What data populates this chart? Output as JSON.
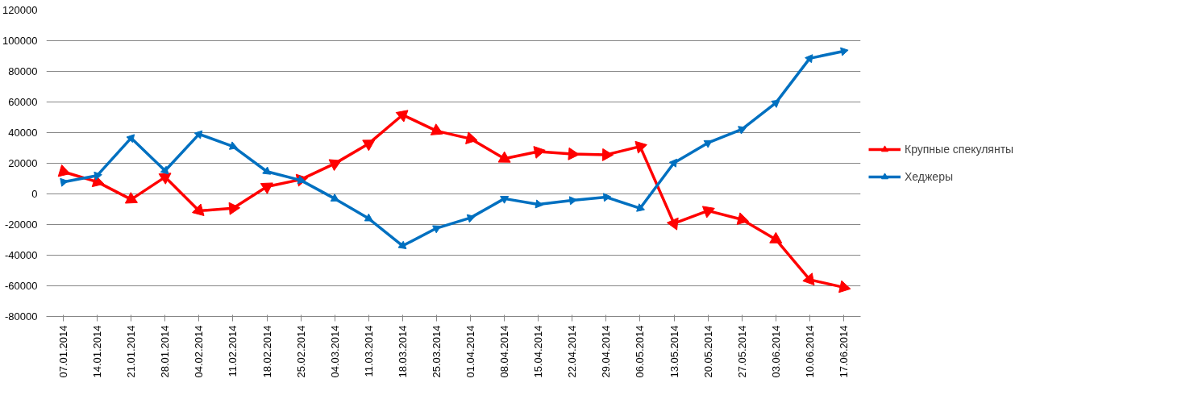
{
  "chart_data": {
    "type": "line",
    "categories": [
      "07.01.2014",
      "14.01.2014",
      "21.01.2014",
      "28.01.2014",
      "04.02.2014",
      "11.02.2014",
      "18.02.2014",
      "25.02.2014",
      "04.03.2014",
      "11.03.2014",
      "18.03.2014",
      "25.03.2014",
      "01.04.2014",
      "08.04.2014",
      "15.04.2014",
      "22.04.2014",
      "29.04.2014",
      "06.05.2014",
      "13.05.2014",
      "20.05.2014",
      "27.05.2014",
      "03.06.2014",
      "10.06.2014",
      "17.06.2014"
    ],
    "series": [
      {
        "name": "Крупные спекулянты",
        "color": "#ff0000",
        "values": [
          14500,
          7800,
          -3600,
          11000,
          -11000,
          -9400,
          4700,
          9400,
          19800,
          32800,
          51600,
          41100,
          36000,
          23000,
          27600,
          26000,
          25500,
          31000,
          -19300,
          -11000,
          -16700,
          -29700,
          -56000,
          -61000
        ]
      },
      {
        "name": "Хеджеры",
        "color": "#0070c0",
        "values": [
          7800,
          12000,
          36500,
          15100,
          39000,
          31000,
          14600,
          8900,
          -3100,
          -16100,
          -33900,
          -22400,
          -15600,
          -3100,
          -6800,
          -4200,
          -2100,
          -9400,
          20300,
          33300,
          42200,
          59400,
          88500,
          93200
        ]
      }
    ],
    "ylim": [
      -80000,
      120000
    ],
    "yticks": [
      -80000,
      -60000,
      -40000,
      -20000,
      0,
      20000,
      40000,
      60000,
      80000,
      100000,
      120000
    ],
    "grid": "y",
    "legend": "right",
    "marker": "triangle",
    "line_style": "solid"
  }
}
